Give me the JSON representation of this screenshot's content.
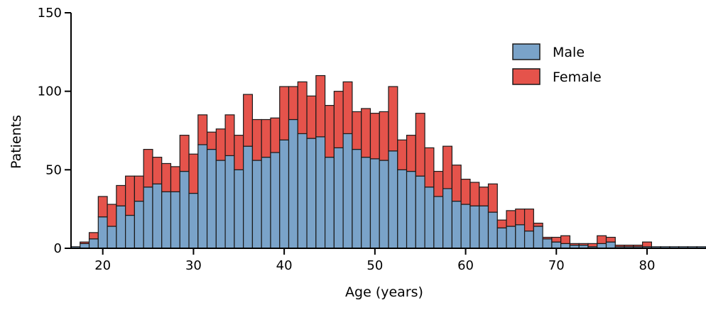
{
  "chart_data": {
    "type": "bar",
    "stacked": true,
    "xlabel": "Age (years)",
    "ylabel": "Patients",
    "xlim": [
      16.5,
      86.5
    ],
    "ylim": [
      0,
      150
    ],
    "x_ticks": [
      20,
      30,
      40,
      50,
      60,
      70,
      80
    ],
    "x_tick_labels": [
      "20",
      "30",
      "40",
      "50",
      "60",
      "70",
      "80"
    ],
    "y_ticks": [
      0,
      50,
      100,
      150
    ],
    "y_tick_labels": [
      "0",
      "50",
      "100",
      "150"
    ],
    "legend_position": "top-right",
    "grid": false,
    "x": [
      17,
      18,
      19,
      20,
      21,
      22,
      23,
      24,
      25,
      26,
      27,
      28,
      29,
      30,
      31,
      32,
      33,
      34,
      35,
      36,
      37,
      38,
      39,
      40,
      41,
      42,
      43,
      44,
      45,
      46,
      47,
      48,
      49,
      50,
      51,
      52,
      53,
      54,
      55,
      56,
      57,
      58,
      59,
      60,
      61,
      62,
      63,
      64,
      65,
      66,
      67,
      68,
      69,
      70,
      71,
      72,
      73,
      74,
      75,
      76,
      77,
      78,
      79,
      80,
      81,
      82,
      83,
      84,
      85,
      86
    ],
    "series": [
      {
        "name": "Male",
        "color": "#7aa3c9",
        "values": [
          1,
          3,
          6,
          20,
          14,
          27,
          21,
          30,
          39,
          41,
          36,
          36,
          49,
          35,
          66,
          63,
          56,
          59,
          50,
          65,
          56,
          58,
          61,
          69,
          82,
          73,
          70,
          71,
          58,
          64,
          73,
          63,
          58,
          57,
          56,
          62,
          50,
          49,
          46,
          39,
          33,
          38,
          30,
          28,
          27,
          27,
          23,
          13,
          14,
          15,
          11,
          14,
          6,
          4,
          3,
          2,
          2,
          1,
          3,
          4,
          1,
          1,
          1,
          1,
          1,
          1,
          1,
          1,
          1,
          1
        ]
      },
      {
        "name": "Female",
        "color": "#e5534b",
        "values": [
          0,
          1,
          4,
          13,
          14,
          13,
          25,
          16,
          24,
          17,
          18,
          16,
          23,
          25,
          19,
          11,
          20,
          26,
          22,
          33,
          26,
          24,
          22,
          34,
          21,
          33,
          27,
          39,
          33,
          36,
          33,
          24,
          31,
          29,
          31,
          41,
          19,
          23,
          40,
          25,
          16,
          27,
          23,
          16,
          15,
          12,
          18,
          5,
          10,
          10,
          14,
          2,
          1,
          3,
          5,
          1,
          1,
          2,
          5,
          3,
          1,
          1,
          1,
          3,
          0,
          0,
          0,
          0,
          0,
          0
        ]
      }
    ]
  }
}
